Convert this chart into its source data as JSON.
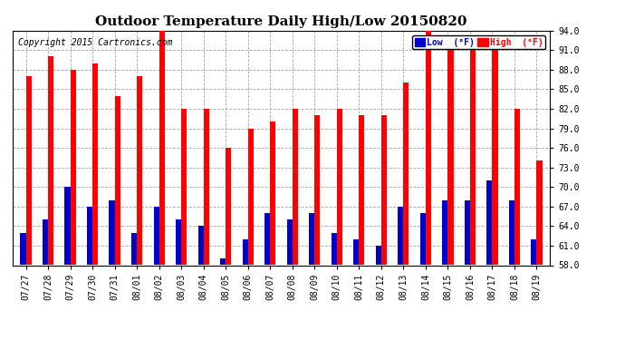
{
  "title": "Outdoor Temperature Daily High/Low 20150820",
  "copyright": "Copyright 2015 Cartronics.com",
  "legend_low": "Low  (°F)",
  "legend_high": "High  (°F)",
  "dates": [
    "07/27",
    "07/28",
    "07/29",
    "07/30",
    "07/31",
    "08/01",
    "08/02",
    "08/03",
    "08/04",
    "08/05",
    "08/06",
    "08/07",
    "08/08",
    "08/09",
    "08/10",
    "08/11",
    "08/12",
    "08/13",
    "08/14",
    "08/15",
    "08/16",
    "08/17",
    "08/18",
    "08/19"
  ],
  "highs": [
    87,
    90,
    88,
    89,
    84,
    87,
    94,
    82,
    82,
    76,
    79,
    80,
    82,
    81,
    82,
    81,
    81,
    86,
    94,
    91,
    91,
    91,
    82,
    74
  ],
  "lows": [
    63,
    65,
    70,
    67,
    68,
    63,
    67,
    65,
    64,
    59,
    62,
    66,
    65,
    66,
    63,
    62,
    61,
    67,
    66,
    68,
    68,
    71,
    68,
    62
  ],
  "high_color": "#ff0000",
  "low_color": "#0000cc",
  "bg_color": "#ffffff",
  "grid_color": "#999999",
  "ymin": 58.0,
  "ylim": [
    58.0,
    94.0
  ],
  "yticks": [
    58.0,
    61.0,
    64.0,
    67.0,
    70.0,
    73.0,
    76.0,
    79.0,
    82.0,
    85.0,
    88.0,
    91.0,
    94.0
  ],
  "bar_width": 0.25,
  "title_fontsize": 11,
  "tick_fontsize": 7,
  "copyright_fontsize": 7
}
